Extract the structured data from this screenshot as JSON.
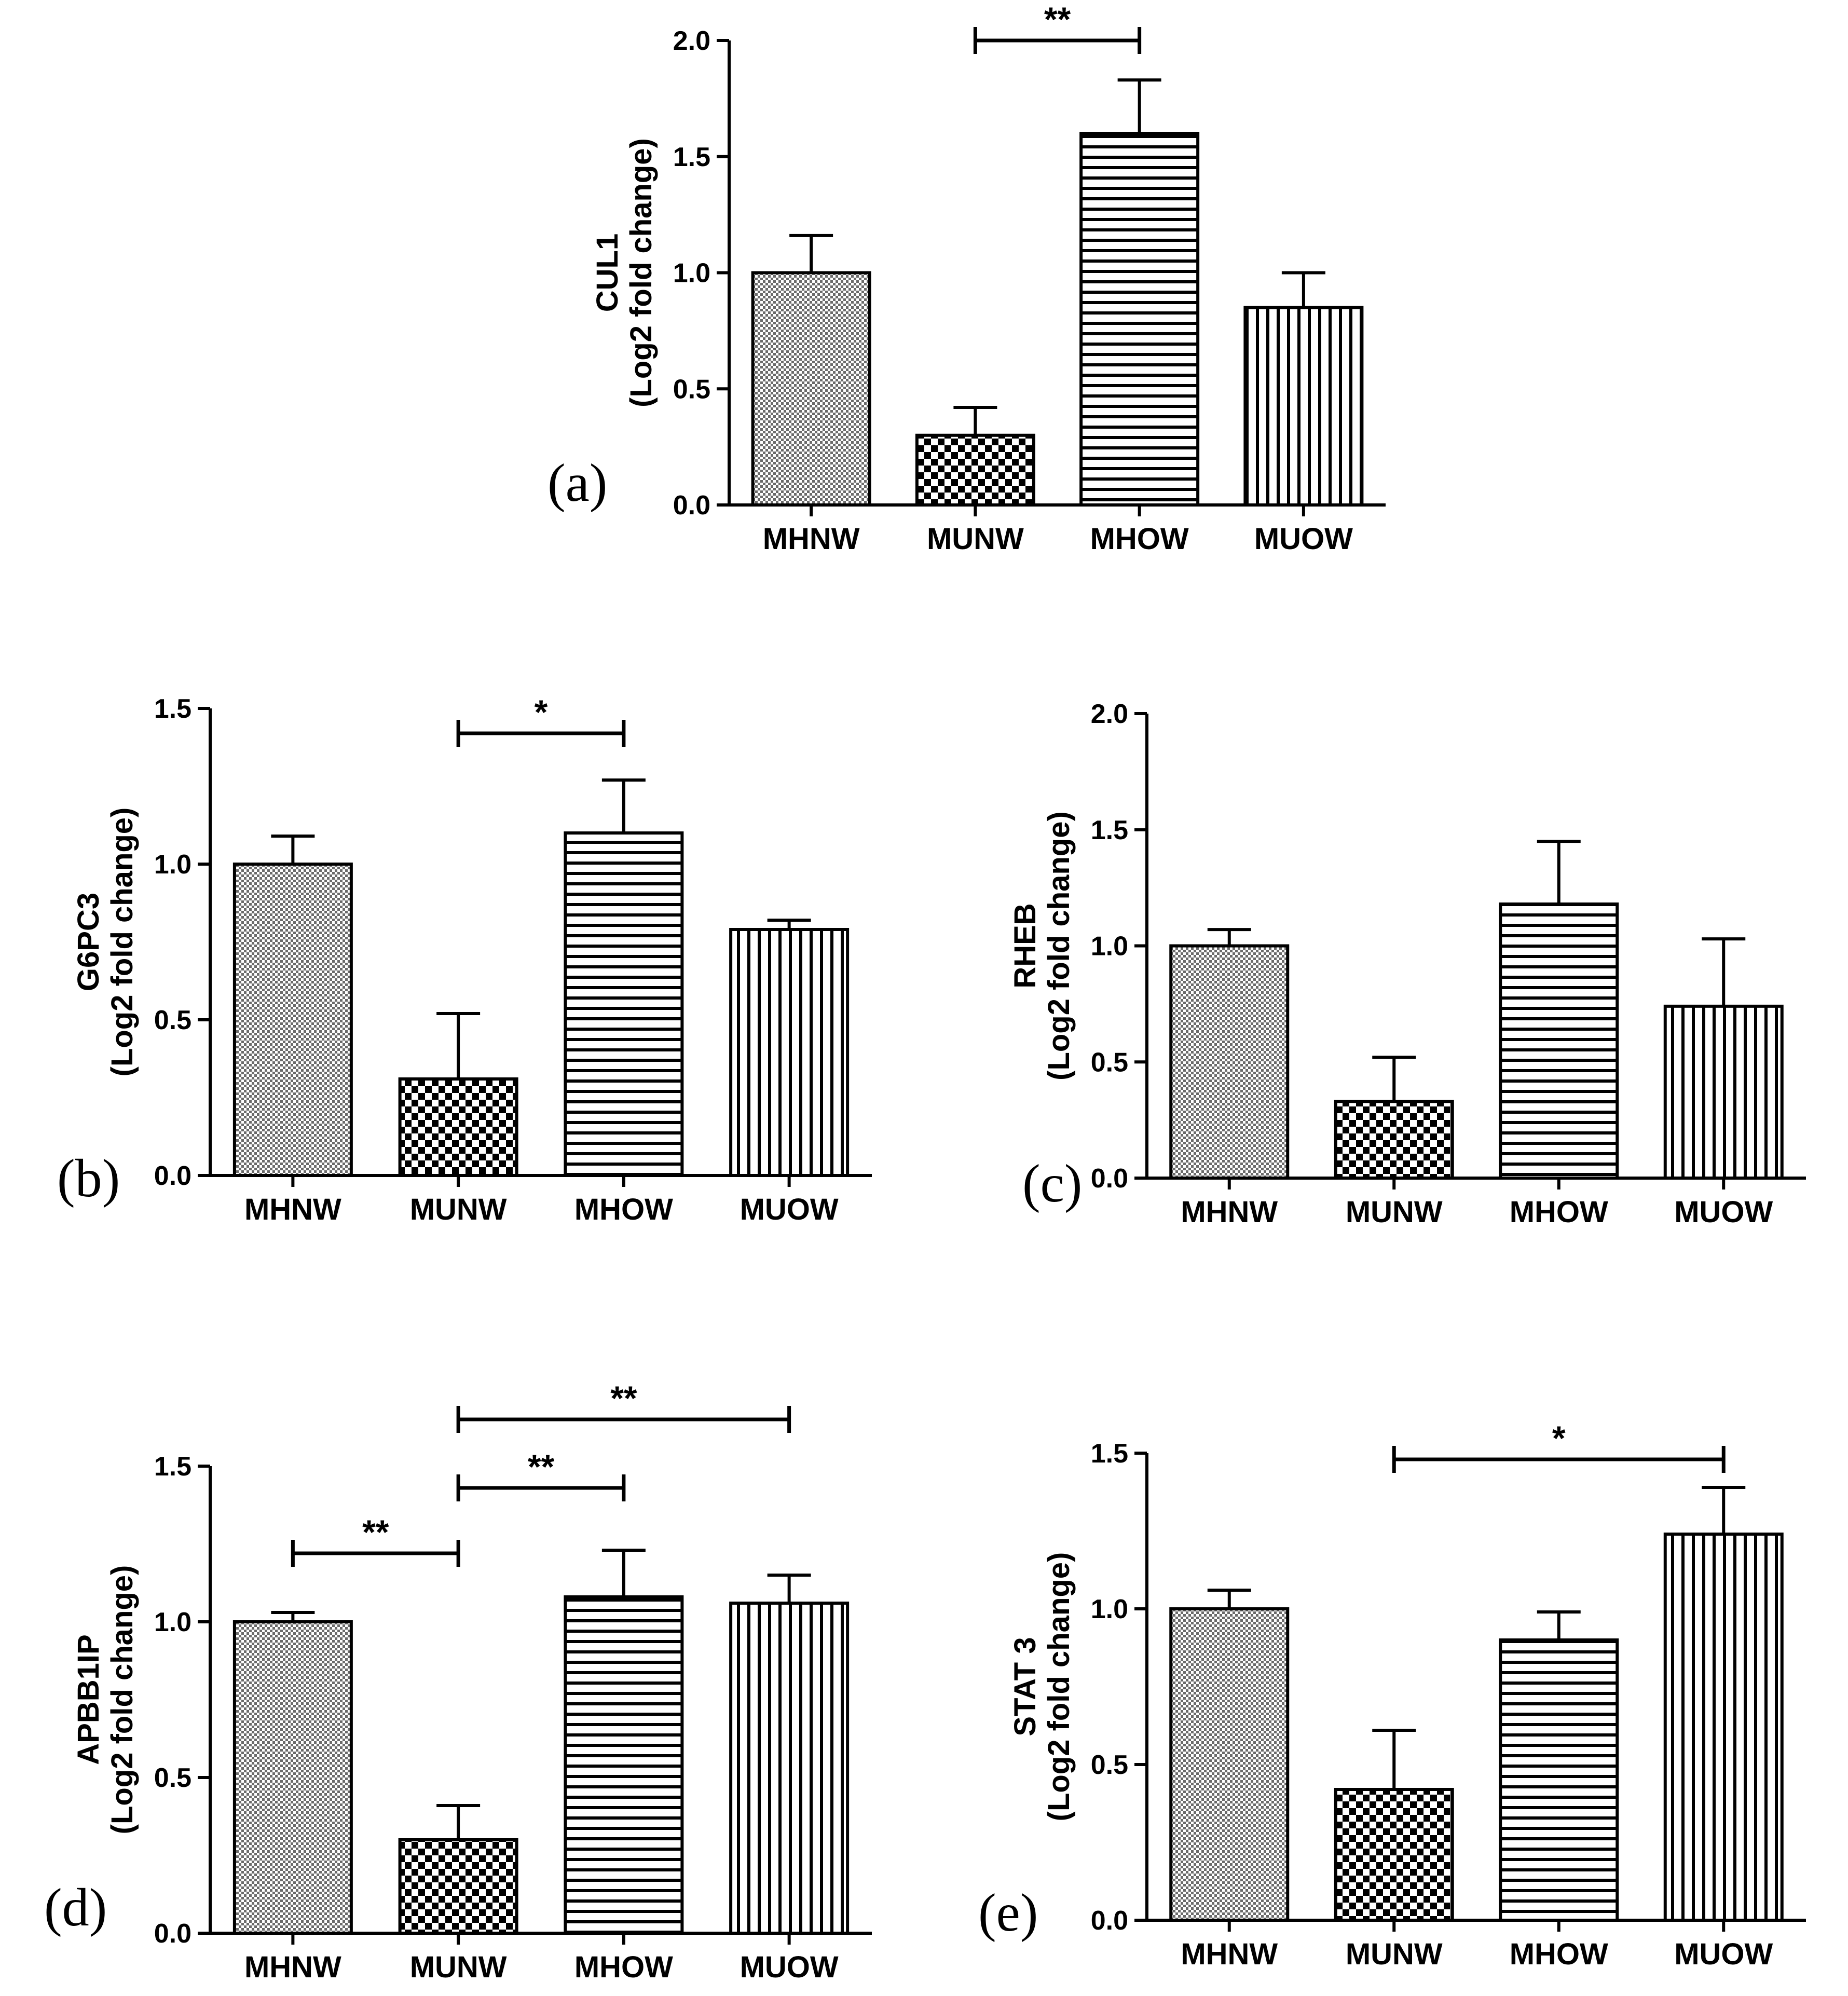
{
  "chart_data": [
    {
      "panel": "(a)",
      "type": "bar",
      "title": "",
      "ylabel_line1": "CUL1",
      "ylabel_line2": "(Log2 fold change)",
      "categories": [
        "MHNW",
        "MUNW",
        "MHOW",
        "MUOW"
      ],
      "values": [
        1.0,
        0.3,
        1.6,
        0.85
      ],
      "errors": [
        0.16,
        0.12,
        0.23,
        0.15
      ],
      "ylim": [
        0,
        2.0
      ],
      "yticks": [
        0.0,
        0.5,
        1.0,
        1.5,
        2.0
      ],
      "ytick_labels": [
        "0.0",
        "0.5",
        "1.0",
        "1.5",
        "2.0"
      ],
      "significance": [
        {
          "from": 1,
          "to": 2,
          "level": 2.0,
          "label": "**"
        }
      ]
    },
    {
      "panel": "(b)",
      "type": "bar",
      "title": "",
      "ylabel_line1": "G6PC3",
      "ylabel_line2": "(Log2 fold change)",
      "categories": [
        "MHNW",
        "MUNW",
        "MHOW",
        "MUOW"
      ],
      "values": [
        1.0,
        0.31,
        1.1,
        0.79
      ],
      "errors": [
        0.09,
        0.21,
        0.17,
        0.03
      ],
      "ylim": [
        0,
        1.5
      ],
      "yticks": [
        0.0,
        0.5,
        1.0,
        1.5
      ],
      "ytick_labels": [
        "0.0",
        "0.5",
        "1.0",
        "1.5"
      ],
      "significance": [
        {
          "from": 1,
          "to": 2,
          "level": 1.42,
          "label": "*"
        }
      ]
    },
    {
      "panel": "(c)",
      "type": "bar",
      "title": "",
      "ylabel_line1": "RHEB",
      "ylabel_line2": "(Log2 fold change)",
      "categories": [
        "MHNW",
        "MUNW",
        "MHOW",
        "MUOW"
      ],
      "values": [
        1.0,
        0.33,
        1.18,
        0.74
      ],
      "errors": [
        0.07,
        0.19,
        0.27,
        0.29
      ],
      "ylim": [
        0,
        2.0
      ],
      "yticks": [
        0.0,
        0.5,
        1.0,
        1.5,
        2.0
      ],
      "ytick_labels": [
        "0.0",
        "0.5",
        "1.0",
        "1.5",
        "2.0"
      ],
      "significance": []
    },
    {
      "panel": "(d)",
      "type": "bar",
      "title": "",
      "ylabel_line1": "APBB1IP",
      "ylabel_line2": "(Log2 fold change)",
      "categories": [
        "MHNW",
        "MUNW",
        "MHOW",
        "MUOW"
      ],
      "values": [
        1.0,
        0.3,
        1.08,
        1.06
      ],
      "errors": [
        0.03,
        0.11,
        0.15,
        0.09
      ],
      "ylim": [
        0,
        1.5
      ],
      "yticks": [
        0.0,
        0.5,
        1.0,
        1.5
      ],
      "ytick_labels": [
        "0.0",
        "0.5",
        "1.0",
        "1.5"
      ],
      "significance": [
        {
          "from": 0,
          "to": 1,
          "level": 1.22,
          "label": "**"
        },
        {
          "from": 1,
          "to": 2,
          "level": 1.43,
          "label": "**"
        },
        {
          "from": 1,
          "to": 3,
          "level": 1.65,
          "label": "**"
        }
      ]
    },
    {
      "panel": "(e)",
      "type": "bar",
      "title": "",
      "ylabel_line1": "STAT 3",
      "ylabel_line2": "(Log2 fold change)",
      "categories": [
        "MHNW",
        "MUNW",
        "MHOW",
        "MUOW"
      ],
      "values": [
        1.0,
        0.42,
        0.9,
        1.24
      ],
      "errors": [
        0.06,
        0.19,
        0.09,
        0.15
      ],
      "ylim": [
        0,
        1.5
      ],
      "yticks": [
        0.0,
        0.5,
        1.0,
        1.5
      ],
      "ytick_labels": [
        "0.0",
        "0.5",
        "1.0",
        "1.5"
      ],
      "significance": [
        {
          "from": 1,
          "to": 3,
          "level": 1.48,
          "label": "*"
        }
      ]
    }
  ]
}
